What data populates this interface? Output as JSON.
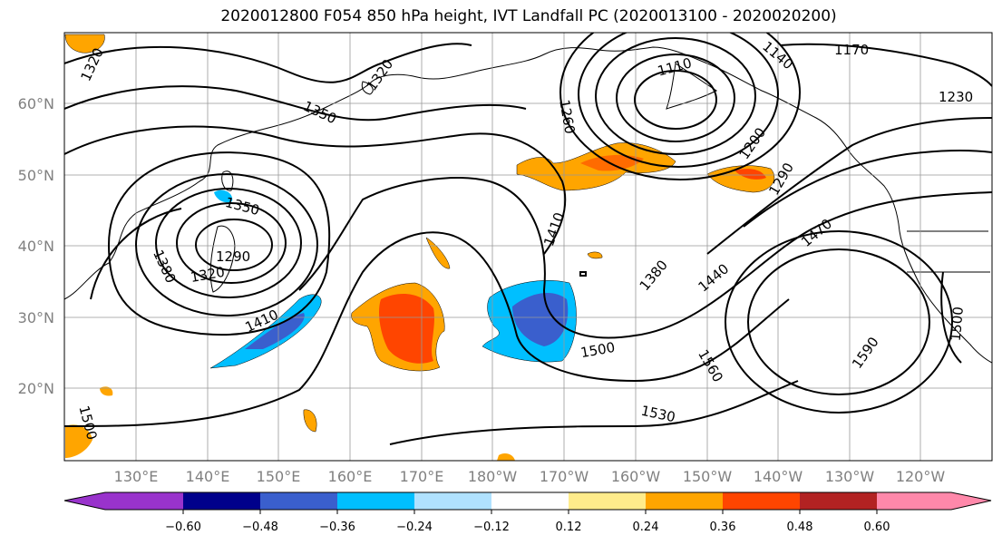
{
  "title": "2020012800 F054 850 hPa height, IVT Landfall PC (2020013100 - 2020020200)",
  "lat_labels": [
    "60°N",
    "50°N",
    "40°N",
    "30°N",
    "20°N"
  ],
  "lon_labels": [
    "130°E",
    "140°E",
    "150°E",
    "160°E",
    "170°E",
    "180°W",
    "170°W",
    "160°W",
    "150°W",
    "140°W",
    "130°W",
    "120°W"
  ],
  "contour_labels": [
    "1320",
    "1320",
    "1350",
    "1260",
    "1110",
    "1140",
    "1170",
    "1230",
    "1200",
    "1290",
    "1350",
    "1290",
    "1320",
    "1380",
    "1410",
    "1410",
    "1380",
    "1440",
    "1470",
    "1500",
    "1560",
    "1590",
    "1500",
    "1530",
    "1500"
  ],
  "colorbar": {
    "colors": [
      "#9933cc",
      "#00008b",
      "#3a5fcd",
      "#00bfff",
      "#b0e2ff",
      "#ffffff",
      "#ffec8b",
      "#ffa500",
      "#ff4500",
      "#b22222",
      "#ff88aa"
    ],
    "tick_labels": [
      "−0.60",
      "−0.48",
      "−0.36",
      "−0.24",
      "−0.12",
      "0.12",
      "0.24",
      "0.36",
      "0.48",
      "0.60"
    ]
  }
}
